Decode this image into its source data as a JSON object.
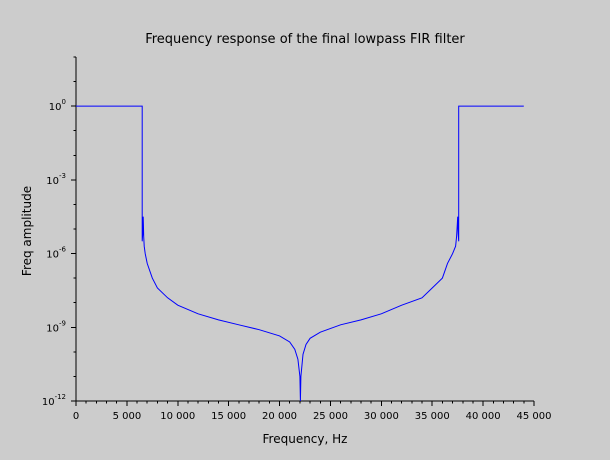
{
  "chart_data": {
    "type": "line",
    "title": "Frequency response of the final lowpass FIR filter",
    "xlabel": "Frequency, Hz",
    "ylabel": "Freq amplitude",
    "xlim": [
      0,
      45000
    ],
    "ylim_log10": [
      -12,
      2
    ],
    "yscale": "log",
    "grid": false,
    "x_ticks": [
      0,
      5000,
      10000,
      15000,
      20000,
      25000,
      30000,
      35000,
      40000,
      45000
    ],
    "x_tick_labels": [
      "0",
      "5 000",
      "10 000",
      "15 000",
      "20 000",
      "25 000",
      "30 000",
      "35 000",
      "40 000",
      "45 000"
    ],
    "y_major_ticks": [
      {
        "base": "10",
        "exp": "0",
        "log10": 0
      },
      {
        "base": "10",
        "exp": "-3",
        "log10": -3
      },
      {
        "base": "10",
        "exp": "-6",
        "log10": -6
      },
      {
        "base": "10",
        "exp": "-9",
        "log10": -9
      },
      {
        "base": "10",
        "exp": "-12",
        "log10": -12
      }
    ],
    "y_minor_ticks_log10": [
      1,
      2,
      -1,
      -2,
      -4,
      -5,
      -7,
      -8,
      -10,
      -11
    ],
    "series": [
      {
        "color": "#0000ff",
        "x": [
          0,
          6500,
          6500,
          6550,
          6600,
          6620,
          6650,
          6700,
          6800,
          7000,
          7500,
          8000,
          9000,
          10000,
          12000,
          14000,
          16000,
          18000,
          20000,
          21000,
          21500,
          21800,
          22000,
          22050,
          22100,
          22300,
          22600,
          23000,
          24000,
          26000,
          28000,
          30000,
          32000,
          34000,
          35000,
          36000,
          36500,
          37000,
          37300,
          37400,
          37460,
          37500,
          37550,
          37600,
          37600,
          44000
        ],
        "y_log10": [
          0,
          0,
          -5.5,
          -5.2,
          -4.5,
          -4.8,
          -5.3,
          -5.7,
          -6.0,
          -6.4,
          -7.0,
          -7.4,
          -7.8,
          -8.1,
          -8.45,
          -8.7,
          -8.9,
          -9.1,
          -9.35,
          -9.6,
          -9.9,
          -10.3,
          -11.0,
          -12.0,
          -11.0,
          -10.1,
          -9.7,
          -9.45,
          -9.2,
          -8.9,
          -8.7,
          -8.45,
          -8.1,
          -7.8,
          -7.4,
          -7.0,
          -6.4,
          -6.0,
          -5.7,
          -5.3,
          -4.8,
          -4.5,
          -5.2,
          -5.5,
          0,
          0
        ]
      }
    ]
  }
}
